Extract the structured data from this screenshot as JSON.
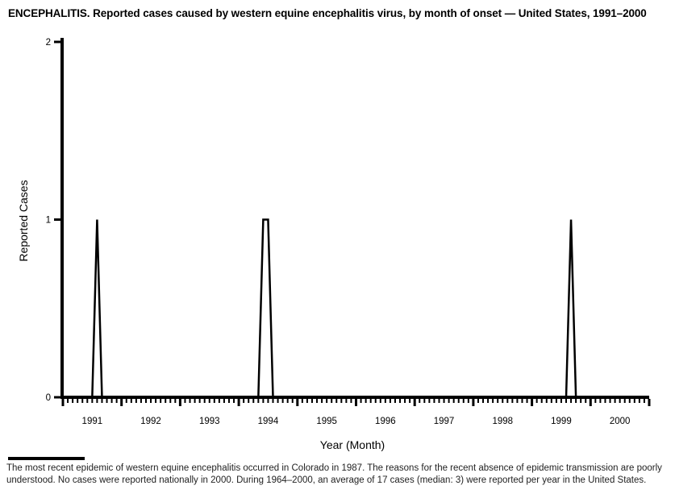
{
  "title": "ENCEPHALITIS. Reported cases caused by western equine encephalitis virus, by month of onset — United States, 1991–2000",
  "footnote": {
    "line1": "The most recent epidemic of western equine encephalitis occurred in Colorado in 1987. The reasons for the recent absence of epidemic transmission are poorly",
    "line2": "understood. No cases were reported nationally in 2000. During 1964–2000, an average of 17 cases (median: 3) were reported per year in the United States."
  },
  "chart_data": {
    "type": "line",
    "title": "ENCEPHALITIS. Reported cases caused by western equine encephalitis virus, by month of onset — United States, 1991–2000",
    "xlabel": "Year (Month)",
    "ylabel": "Reported Cases",
    "x_years": [
      "1991",
      "1992",
      "1993",
      "1994",
      "1995",
      "1996",
      "1997",
      "1998",
      "1999",
      "2000"
    ],
    "x_start": "1991-01",
    "x_step": "1 month",
    "months_per_year": 12,
    "ylim": [
      0,
      2
    ],
    "yticks": [
      0,
      1,
      2
    ],
    "grid": "off",
    "legend": "none",
    "line_color": "#000000",
    "nonzero_points": [
      {
        "year": 1991,
        "month": 8,
        "month_name": "Aug",
        "cases": 1
      },
      {
        "year": 1994,
        "month": 6,
        "month_name": "Jun",
        "cases": 1
      },
      {
        "year": 1994,
        "month": 7,
        "month_name": "Jul",
        "cases": 1
      },
      {
        "year": 1999,
        "month": 9,
        "month_name": "Sep",
        "cases": 1
      }
    ],
    "values": [
      0,
      0,
      0,
      0,
      0,
      0,
      0,
      1,
      0,
      0,
      0,
      0,
      0,
      0,
      0,
      0,
      0,
      0,
      0,
      0,
      0,
      0,
      0,
      0,
      0,
      0,
      0,
      0,
      0,
      0,
      0,
      0,
      0,
      0,
      0,
      0,
      0,
      0,
      0,
      0,
      0,
      1,
      1,
      0,
      0,
      0,
      0,
      0,
      0,
      0,
      0,
      0,
      0,
      0,
      0,
      0,
      0,
      0,
      0,
      0,
      0,
      0,
      0,
      0,
      0,
      0,
      0,
      0,
      0,
      0,
      0,
      0,
      0,
      0,
      0,
      0,
      0,
      0,
      0,
      0,
      0,
      0,
      0,
      0,
      0,
      0,
      0,
      0,
      0,
      0,
      0,
      0,
      0,
      0,
      0,
      0,
      0,
      0,
      0,
      0,
      0,
      0,
      0,
      0,
      1,
      0,
      0,
      0,
      0,
      0,
      0,
      0,
      0,
      0,
      0,
      0,
      0,
      0,
      0,
      0
    ]
  }
}
